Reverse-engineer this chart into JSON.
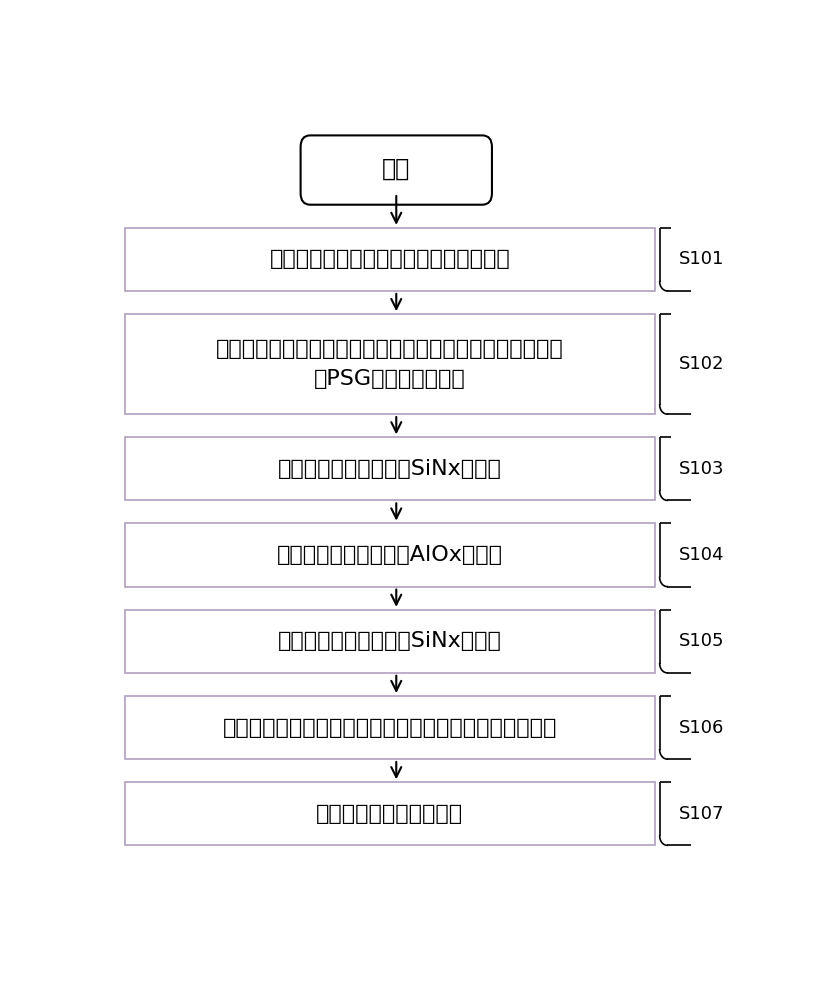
{
  "title": "开始",
  "bg_color": "#ffffff",
  "steps": [
    {
      "label": "提供硅片，并在所述硅片的正面形成绒面",
      "step_id": "S101",
      "lines": 1
    },
    {
      "label": "在所述硅片的正面形成磷扩散层，然后去除所述硅片的正面\n的PSG和周边磷扩散层",
      "step_id": "S102",
      "lines": 2
    },
    {
      "label": "在所述硅片的正面形成SiNx减反层",
      "step_id": "S103",
      "lines": 1
    },
    {
      "label": "在所述硅片的背面形成AlOx钝化层",
      "step_id": "S104",
      "lines": 1
    },
    {
      "label": "在所述硅片的背面形成SiNx保护层",
      "step_id": "S105",
      "lines": 1
    },
    {
      "label": "对所述硅片进行激光开窗，所述激光开窗工艺分两次完成",
      "step_id": "S106",
      "lines": 1
    },
    {
      "label": "对所述硅片进行丝网印刷",
      "step_id": "S107",
      "lines": 1
    }
  ],
  "box_fill": "#ffffff",
  "box_border": "#b0a0c0",
  "arrow_color": "#000000",
  "font_size_main": 16,
  "font_size_step": 13
}
